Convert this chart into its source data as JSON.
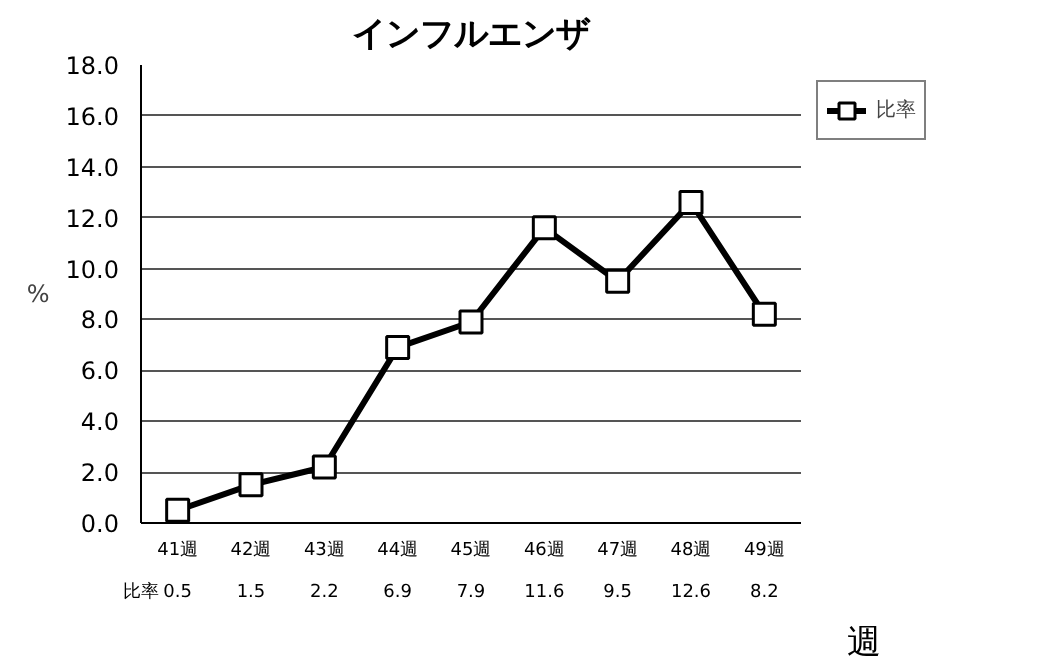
{
  "chart_data": {
    "type": "line",
    "title": "インフルエンザ",
    "xlabel": "週",
    "ylabel": "%",
    "categories": [
      "41週",
      "42週",
      "43週",
      "44週",
      "45週",
      "46週",
      "47週",
      "48週",
      "49週"
    ],
    "series": [
      {
        "name": "比率",
        "color": "#000000",
        "values": [
          0.5,
          1.5,
          2.2,
          6.9,
          7.9,
          11.6,
          9.5,
          12.6,
          8.2
        ]
      }
    ],
    "ylim": [
      0,
      18
    ],
    "yticks": [
      {
        "value": 0,
        "label": "0.0"
      },
      {
        "value": 2,
        "label": "2.0"
      },
      {
        "value": 4,
        "label": "4.0"
      },
      {
        "value": 6,
        "label": "6.0"
      },
      {
        "value": 8,
        "label": "8.0"
      },
      {
        "value": 10,
        "label": "10.0"
      },
      {
        "value": 12,
        "label": "12.0"
      },
      {
        "value": 14,
        "label": "14.0"
      },
      {
        "value": 16,
        "label": "16.0"
      },
      {
        "value": 18,
        "label": "18.0"
      }
    ],
    "grid": "y",
    "legend": "right",
    "marker": "square",
    "line_style": "solid",
    "data_labels": true
  }
}
